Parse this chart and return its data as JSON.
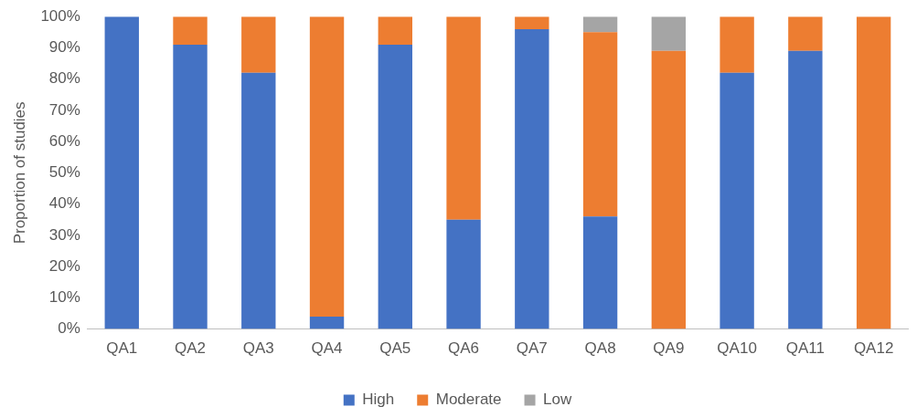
{
  "chart_data": {
    "type": "bar",
    "stacked": true,
    "ylabel": "Proportion of studies",
    "categories": [
      "QA1",
      "QA2",
      "QA3",
      "QA4",
      "QA5",
      "QA6",
      "QA7",
      "QA8",
      "QA9",
      "QA10",
      "QA11",
      "QA12"
    ],
    "series": [
      {
        "name": "High",
        "color": "#4472c4",
        "values": [
          100,
          91,
          82,
          4,
          91,
          35,
          96,
          36,
          0,
          82,
          89,
          0
        ]
      },
      {
        "name": "Moderate",
        "color": "#ed7d31",
        "values": [
          0,
          9,
          18,
          96,
          9,
          65,
          4,
          59,
          89,
          18,
          11,
          100
        ]
      },
      {
        "name": "Low",
        "color": "#a5a5a5",
        "values": [
          0,
          0,
          0,
          0,
          0,
          0,
          0,
          5,
          11,
          0,
          0,
          0
        ]
      }
    ],
    "ylim": [
      0,
      100
    ],
    "yticks": [
      {
        "value": 0,
        "label": "0%"
      },
      {
        "value": 10,
        "label": "10%"
      },
      {
        "value": 20,
        "label": "20%"
      },
      {
        "value": 30,
        "label": "30%"
      },
      {
        "value": 40,
        "label": "40%"
      },
      {
        "value": 50,
        "label": "50%"
      },
      {
        "value": 60,
        "label": "60%"
      },
      {
        "value": 70,
        "label": "70%"
      },
      {
        "value": 80,
        "label": "80%"
      },
      {
        "value": 90,
        "label": "90%"
      },
      {
        "value": 100,
        "label": "100%"
      }
    ],
    "grid": false,
    "legend": "bottom"
  }
}
